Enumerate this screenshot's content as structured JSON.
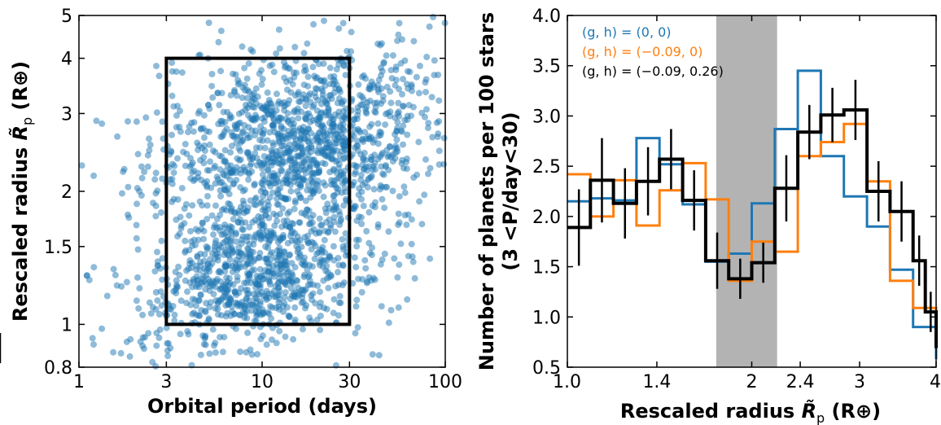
{
  "chart_data": [
    {
      "type": "scatter",
      "xlabel": "Orbital period (days)",
      "ylabel_prefix": "Rescaled radius ",
      "ylabel_var": "R̃",
      "ylabel_sub": "p",
      "ylabel_unit": " (R⊕)",
      "xscale": "log",
      "yscale": "log",
      "xlim": [
        1,
        100
      ],
      "ylim": [
        0.8,
        5
      ],
      "xticks": [
        1,
        3,
        10,
        30,
        100
      ],
      "xtick_labels": [
        "1",
        "3",
        "10",
        "30",
        "100"
      ],
      "yticks": [
        0.8,
        1,
        1.5,
        2,
        3,
        4,
        5
      ],
      "ytick_labels": [
        "0.8",
        "1",
        "1.5",
        "2",
        "3",
        "4",
        "5"
      ],
      "point_color": "#1f77b4",
      "point_count": 2200,
      "box": {
        "x": [
          3,
          30
        ],
        "y": [
          1,
          4
        ],
        "color": "#000000"
      },
      "point_clusters": [
        {
          "period_center": 9,
          "radius_center": 1.3,
          "weight": 0.38
        },
        {
          "period_center": 16,
          "radius_center": 2.5,
          "weight": 0.62
        }
      ]
    },
    {
      "type": "step",
      "ylabel_line1": "Number of planets per 100 stars",
      "ylabel_line2": "(3 <P/day<30)",
      "xlabel_prefix": "Rescaled radius ",
      "xlabel_var": "R̃",
      "xlabel_sub": "p",
      "xlabel_unit": " (R⊕)",
      "xscale": "log",
      "xlim": [
        1.0,
        4.0
      ],
      "ylim": [
        0.5,
        4.0
      ],
      "xticks": [
        1.0,
        1.4,
        2.0,
        2.4,
        3.0,
        4.0
      ],
      "xtick_labels": [
        "1.0",
        "1.4",
        "2",
        "2.4",
        "3",
        "4"
      ],
      "yticks": [
        0.5,
        1.0,
        1.5,
        2.0,
        2.5,
        3.0,
        3.5,
        4.0
      ],
      "ytick_labels": [
        "0.5",
        "1.0",
        "1.5",
        "2.0",
        "2.5",
        "3.0",
        "3.5",
        "4.0"
      ],
      "shaded_region": {
        "x": [
          1.75,
          2.2
        ],
        "color": "#b3b3b3"
      },
      "bin_edges": [
        1.0,
        1.0905,
        1.1892,
        1.2968,
        1.4142,
        1.5422,
        1.6818,
        1.834,
        2.0,
        2.181,
        2.3784,
        2.5937,
        2.8284,
        3.0844,
        3.3636,
        3.668,
        4.0
      ],
      "series": [
        {
          "name": "(g, h) = (0, 0)",
          "color": "#1f77b4",
          "width": 3,
          "values": [
            2.15,
            2.18,
            2.16,
            2.78,
            2.52,
            2.12,
            1.55,
            1.63,
            2.13,
            2.87,
            3.45,
            2.6,
            2.2,
            1.9,
            1.47,
            0.9,
            0.58
          ]
        },
        {
          "name": "(g, h) = (−0.09, 0)",
          "color": "#ff7f0e",
          "width": 3,
          "values": [
            2.42,
            2.0,
            2.36,
            1.91,
            2.26,
            2.53,
            2.17,
            1.36,
            1.75,
            1.65,
            2.6,
            2.74,
            2.92,
            2.35,
            1.36,
            1.09,
            0.79
          ]
        },
        {
          "name": "(g, h) = (−0.09, 0.26)",
          "color": "#000000",
          "width": 4,
          "values": [
            1.89,
            2.36,
            2.13,
            2.35,
            2.57,
            2.16,
            1.56,
            1.38,
            1.54,
            2.28,
            2.84,
            3.01,
            3.06,
            2.25,
            2.05,
            1.56,
            1.05,
            0.69
          ]
        }
      ],
      "black_values": [
        1.89,
        2.36,
        2.13,
        2.35,
        2.57,
        2.16,
        1.56,
        1.38,
        1.54,
        2.28,
        2.84,
        3.01,
        3.06,
        2.25,
        2.05,
        1.56,
        1.05,
        0.69
      ],
      "black_edges": [
        1.0,
        1.0905,
        1.1892,
        1.2968,
        1.4142,
        1.5422,
        1.6818,
        1.834,
        2.0,
        2.181,
        2.3784,
        2.5937,
        2.8284,
        3.0844,
        3.3636,
        3.668,
        3.84,
        4.0
      ],
      "black_errors": [
        0.38,
        0.42,
        0.35,
        0.34,
        0.3,
        0.3,
        0.28,
        0.2,
        0.2,
        0.33,
        0.27,
        0.27,
        0.3,
        0.3,
        0.3,
        0.25,
        0.2,
        0.15
      ]
    }
  ]
}
